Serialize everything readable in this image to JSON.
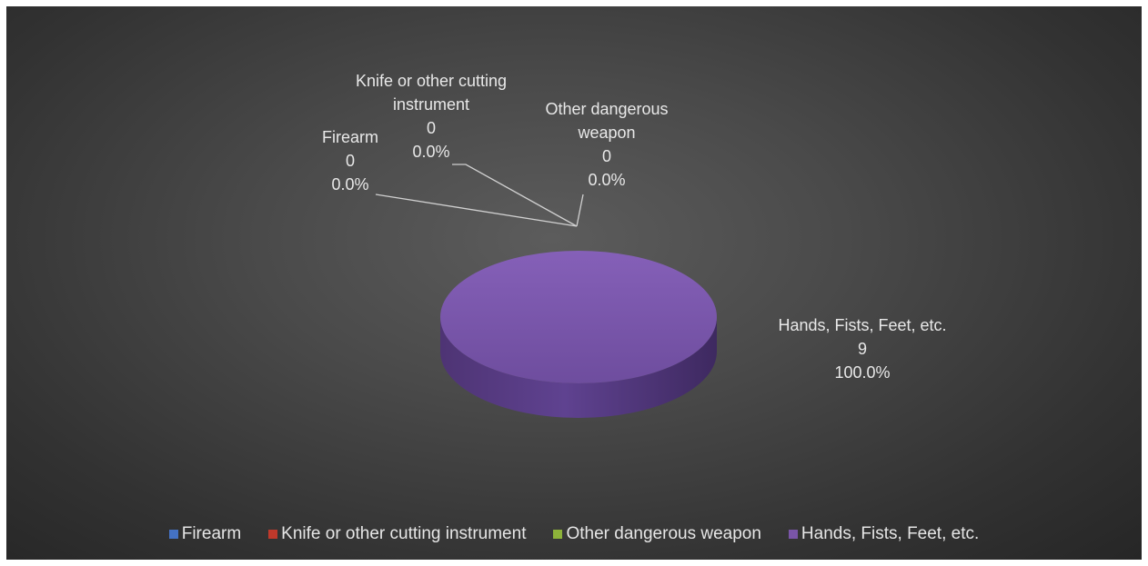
{
  "chart_data": {
    "type": "pie",
    "style": "3d",
    "categories": [
      "Firearm",
      "Knife or other cutting instrument",
      "Other dangerous weapon",
      "Hands, Fists, Feet, etc."
    ],
    "values": [
      0,
      0,
      0,
      9
    ],
    "percent_labels": [
      "0.0%",
      "0.0%",
      "0.0%",
      "100.0%"
    ],
    "colors": [
      "#4472c4",
      "#c0392b",
      "#8db33a",
      "#7a55a8"
    ],
    "legend_position": "bottom",
    "data_labels": [
      {
        "lines": [
          "Firearm",
          "0",
          "0.0%"
        ]
      },
      {
        "lines": [
          "Knife or other cutting",
          "instrument",
          "0",
          "0.0%"
        ]
      },
      {
        "lines": [
          "Other dangerous",
          "weapon",
          "0",
          "0.0%"
        ]
      },
      {
        "lines": [
          "Hands, Fists, Feet, etc.",
          "9",
          "100.0%"
        ]
      }
    ]
  }
}
